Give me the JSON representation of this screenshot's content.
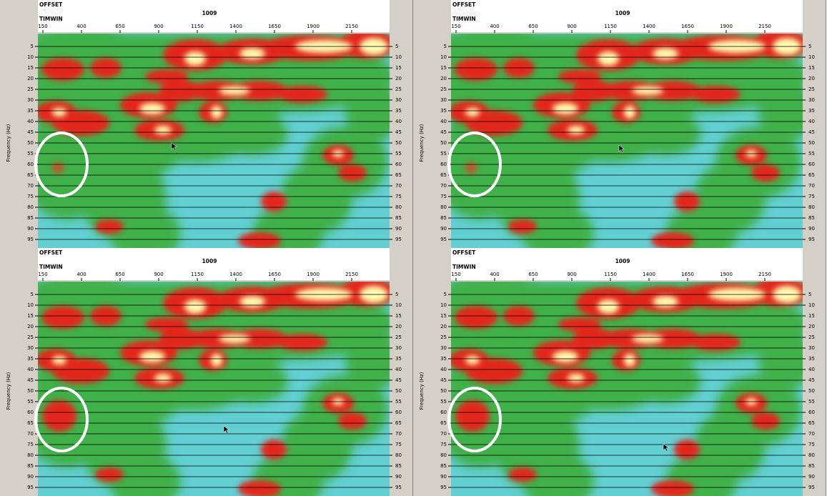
{
  "axes": {
    "offset_label": "OFFSET",
    "window_label": "TIMWIN",
    "center_value": "1009",
    "x_ticks": [
      150,
      400,
      650,
      900,
      1150,
      1400,
      1650,
      1900,
      2150
    ],
    "y_ticks": [
      5,
      10,
      15,
      20,
      25,
      30,
      35,
      40,
      45,
      50,
      55,
      60,
      65,
      70,
      75,
      80,
      85,
      90,
      95
    ],
    "y_title": "Frequency (Hz)"
  }
}
